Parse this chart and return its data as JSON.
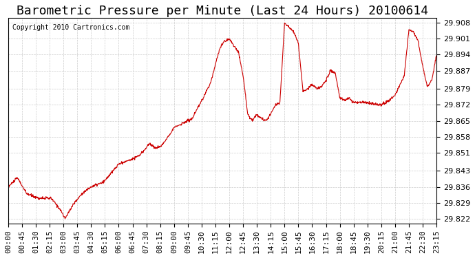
{
  "title": "Barometric Pressure per Minute (Last 24 Hours) 20100614",
  "copyright": "Copyright 2010 Cartronics.com",
  "line_color": "#cc0000",
  "background_color": "#ffffff",
  "grid_color": "#cccccc",
  "yticks": [
    29.822,
    29.829,
    29.836,
    29.843,
    29.851,
    29.858,
    29.865,
    29.872,
    29.879,
    29.887,
    29.894,
    29.901,
    29.908
  ],
  "ylim": [
    29.82,
    29.91
  ],
  "xtick_labels": [
    "00:00",
    "00:45",
    "01:30",
    "02:15",
    "03:00",
    "03:45",
    "04:30",
    "05:15",
    "06:00",
    "06:45",
    "07:30",
    "08:15",
    "09:00",
    "09:45",
    "10:30",
    "11:15",
    "12:00",
    "12:45",
    "13:30",
    "14:15",
    "15:00",
    "15:45",
    "16:30",
    "17:15",
    "18:00",
    "18:45",
    "19:30",
    "20:15",
    "21:00",
    "21:45",
    "22:30",
    "23:15"
  ],
  "x_values": [
    0,
    45,
    90,
    135,
    180,
    225,
    270,
    315,
    360,
    405,
    450,
    495,
    540,
    585,
    630,
    675,
    720,
    765,
    810,
    855,
    900,
    945,
    990,
    1035,
    1080,
    1125,
    1170,
    1215,
    1260,
    1305,
    1350,
    1395
  ],
  "keypoints_t": [
    0,
    30,
    60,
    100,
    140,
    170,
    185,
    210,
    240,
    270,
    310,
    360,
    400,
    430,
    460,
    480,
    500,
    540,
    570,
    600,
    615,
    635,
    660,
    675,
    690,
    705,
    720,
    735,
    750,
    765,
    780,
    795,
    810,
    825,
    840,
    855,
    870,
    885,
    900,
    915,
    930,
    945,
    960,
    975,
    990,
    1005,
    1020,
    1035,
    1050,
    1065,
    1080,
    1095,
    1110,
    1125,
    1140,
    1170,
    1200,
    1215,
    1230,
    1260,
    1290,
    1305,
    1320,
    1335,
    1350,
    1365,
    1380,
    1395
  ],
  "keypoints_v": [
    29.836,
    29.84,
    29.833,
    29.831,
    29.831,
    29.826,
    29.822,
    29.828,
    29.833,
    29.836,
    29.838,
    29.846,
    29.848,
    29.85,
    29.855,
    29.853,
    29.854,
    29.862,
    29.864,
    29.866,
    29.87,
    29.875,
    29.882,
    29.89,
    29.897,
    29.9,
    29.901,
    29.898,
    29.895,
    29.885,
    29.868,
    29.865,
    29.868,
    29.866,
    29.865,
    29.868,
    29.872,
    29.873,
    29.908,
    29.906,
    29.904,
    29.899,
    29.878,
    29.879,
    29.881,
    29.879,
    29.88,
    29.883,
    29.887,
    29.886,
    29.875,
    29.874,
    29.875,
    29.873,
    29.873,
    29.873,
    29.872,
    29.872,
    29.873,
    29.876,
    29.885,
    29.905,
    29.904,
    29.9,
    29.889,
    29.88,
    29.883,
    29.894
  ],
  "title_fontsize": 13,
  "ylabel_fontsize": 8,
  "xlabel_fontsize": 8,
  "noise_seed": 10,
  "noise_std": 0.0003
}
